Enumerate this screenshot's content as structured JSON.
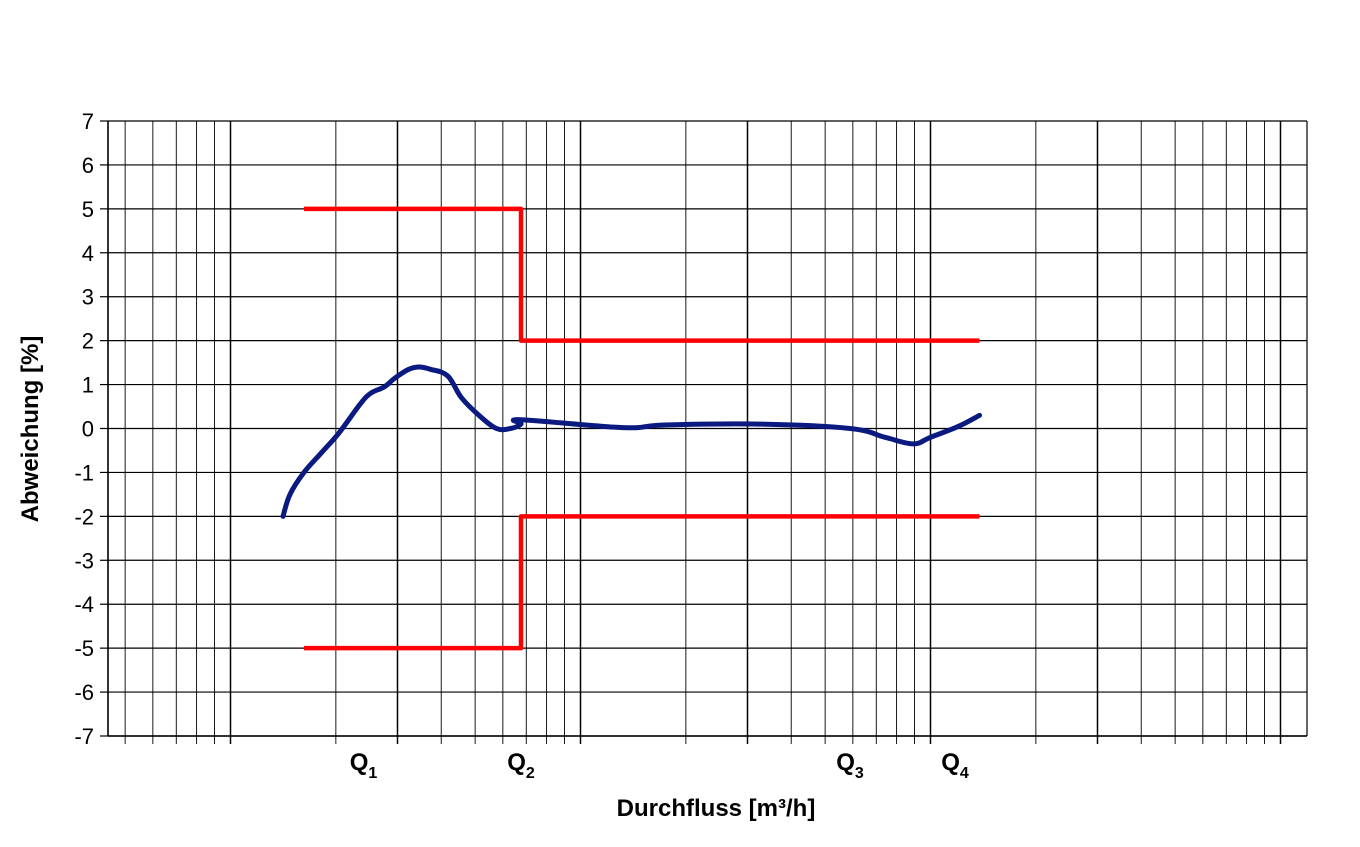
{
  "chart_data": {
    "type": "line",
    "title": "",
    "xlabel": "Durchfluss [m³/h]",
    "ylabel": "Abweichung [%]",
    "x_scale": "log",
    "x_axis_tick_labels": "none",
    "ylim": [
      -7,
      7
    ],
    "yticks": [
      7,
      6,
      5,
      4,
      3,
      2,
      1,
      0,
      -1,
      -2,
      -3,
      -4,
      -5,
      -6,
      -7
    ],
    "grid": true,
    "legend": "none",
    "flow_markers": [
      {
        "name": "Q",
        "sub": "1",
        "decade_pos": 1.38
      },
      {
        "name": "Q",
        "sub": "2",
        "decade_pos": 1.83
      },
      {
        "name": "Q",
        "sub": "3",
        "decade_pos": 2.77
      },
      {
        "name": "Q",
        "sub": "4",
        "decade_pos": 3.07
      }
    ],
    "series": [
      {
        "role": "upper-limit",
        "color": "#ff0000",
        "segments": [
          [
            [
              1.21,
              5
            ],
            [
              1.83,
              5
            ],
            [
              1.83,
              2
            ],
            [
              3.14,
              2
            ]
          ]
        ]
      },
      {
        "role": "lower-limit",
        "color": "#ff0000",
        "segments": [
          [
            [
              1.21,
              -5
            ],
            [
              1.83,
              -5
            ],
            [
              1.83,
              -2
            ],
            [
              3.14,
              -2
            ]
          ]
        ]
      },
      {
        "role": "measured-deviation",
        "color": "#0a1a80",
        "segments": [
          [
            [
              1.15,
              -2.0
            ],
            [
              1.17,
              -1.5
            ],
            [
              1.21,
              -1.0
            ],
            [
              1.26,
              -0.55
            ],
            [
              1.31,
              -0.1
            ],
            [
              1.37,
              0.55
            ],
            [
              1.4,
              0.8
            ],
            [
              1.44,
              0.95
            ],
            [
              1.47,
              1.15
            ],
            [
              1.51,
              1.35
            ],
            [
              1.54,
              1.4
            ],
            [
              1.57,
              1.35
            ],
            [
              1.62,
              1.2
            ],
            [
              1.66,
              0.7
            ],
            [
              1.71,
              0.3
            ],
            [
              1.76,
              0.0
            ],
            [
              1.8,
              0.0
            ],
            [
              1.83,
              0.1
            ],
            [
              1.83,
              0.2
            ],
            [
              2.12,
              0.02
            ],
            [
              2.24,
              0.08
            ],
            [
              2.51,
              0.1
            ],
            [
              2.77,
              0.0
            ],
            [
              2.87,
              -0.2
            ],
            [
              2.95,
              -0.35
            ],
            [
              3.0,
              -0.2
            ],
            [
              3.08,
              0.05
            ],
            [
              3.14,
              0.3
            ]
          ]
        ]
      }
    ]
  }
}
